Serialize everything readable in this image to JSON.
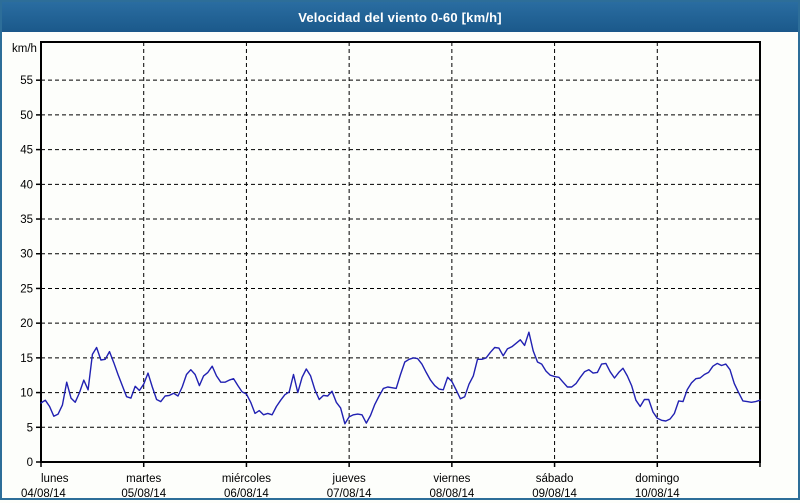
{
  "window": {
    "title": "Velocidad del viento 0-60 [km/h]"
  },
  "colors": {
    "titlebar_bg": "#1d5c8e",
    "titlebar_text": "#ffffff",
    "page_border": "#2d6e99",
    "plot_bg": "#fdfefb",
    "grid": "#000000",
    "frame": "#000000",
    "line": "#2121b2",
    "label": "#000000"
  },
  "chart_data": {
    "type": "line",
    "title": "Velocidad del viento 0-60 [km/h]",
    "ylabel": "km/h",
    "ylim": [
      0,
      60.5
    ],
    "yticks": [
      0,
      5,
      10,
      15,
      20,
      25,
      30,
      35,
      40,
      45,
      50,
      55
    ],
    "grid": "dashed-both-axes",
    "legend": "none",
    "x_unit": "hours",
    "sample_interval_hours": 1,
    "x_range_days": 7,
    "days": [
      {
        "name": "lunes",
        "date": "04/08/14"
      },
      {
        "name": "martes",
        "date": "05/08/14"
      },
      {
        "name": "miércoles",
        "date": "06/08/14"
      },
      {
        "name": "jueves",
        "date": "07/08/14"
      },
      {
        "name": "viernes",
        "date": "08/08/14"
      },
      {
        "name": "sábado",
        "date": "09/08/14"
      },
      {
        "name": "domingo",
        "date": "10/08/14"
      }
    ],
    "series_name": "Velocidad del viento",
    "values": [
      8.5,
      8.9,
      8.0,
      6.6,
      6.9,
      8.2,
      11.5,
      9.2,
      8.6,
      10.0,
      11.8,
      10.4,
      15.5,
      16.5,
      14.7,
      14.8,
      15.9,
      14.3,
      12.6,
      11.0,
      9.4,
      9.2,
      10.9,
      10.3,
      11.2,
      12.8,
      10.8,
      9.0,
      8.7,
      9.5,
      9.6,
      9.9,
      9.5,
      10.8,
      12.6,
      13.3,
      12.6,
      11.0,
      12.4,
      12.9,
      13.8,
      12.4,
      11.5,
      11.5,
      11.8,
      12.0,
      11.0,
      10.1,
      9.8,
      8.6,
      7.0,
      7.4,
      6.8,
      7.0,
      6.8,
      8.0,
      8.9,
      9.7,
      10.1,
      12.6,
      10.0,
      12.2,
      13.4,
      12.4,
      10.4,
      9.0,
      9.6,
      9.5,
      10.2,
      8.6,
      7.8,
      5.5,
      6.5,
      6.8,
      6.9,
      6.8,
      5.6,
      6.7,
      8.3,
      9.5,
      10.6,
      10.8,
      10.7,
      10.6,
      12.6,
      14.4,
      14.8,
      15.0,
      14.9,
      14.1,
      12.9,
      11.8,
      11.0,
      10.5,
      10.4,
      12.2,
      11.6,
      10.4,
      9.1,
      9.4,
      11.2,
      12.4,
      14.8,
      14.8,
      15.0,
      15.8,
      16.5,
      16.4,
      15.3,
      16.3,
      16.6,
      17.1,
      17.6,
      16.8,
      18.7,
      16.0,
      14.4,
      14.1,
      13.1,
      12.5,
      12.3,
      12.2,
      11.5,
      10.8,
      10.8,
      11.3,
      12.2,
      13.0,
      13.3,
      12.8,
      12.9,
      14.1,
      14.2,
      13.0,
      12.1,
      12.9,
      13.5,
      12.4,
      11.0,
      8.9,
      8.0,
      9.0,
      9.0,
      7.2,
      6.3,
      6.0,
      5.9,
      6.2,
      7.0,
      8.8,
      8.7,
      10.4,
      11.4,
      12.0,
      12.1,
      12.6,
      12.9,
      13.8,
      14.2,
      13.9,
      14.1,
      13.3,
      11.3,
      10.0,
      8.8,
      8.7,
      8.6,
      8.7,
      8.9
    ]
  }
}
